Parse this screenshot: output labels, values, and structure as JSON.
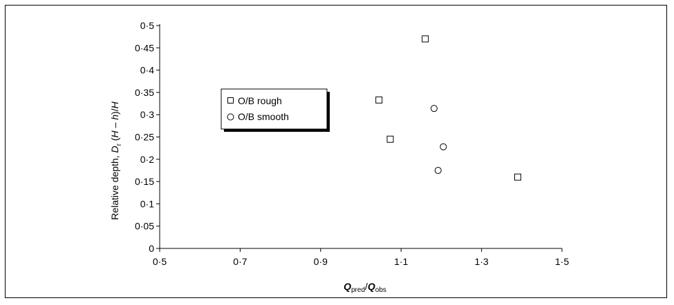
{
  "chart_data": {
    "type": "scatter",
    "xlabel": {
      "main": "Q",
      "main_sub": "pred",
      "sep": "/",
      "denom": "Q",
      "denom_sub": "obs"
    },
    "ylabel": {
      "prefix": "Relative depth, ",
      "var": "D",
      "var_sub": "r",
      "formula_open": " (",
      "formula_H1": "H",
      "formula_minus": " – ",
      "formula_h": "h",
      "formula_close": ")/",
      "formula_H2": "H"
    },
    "xlim": [
      0.5,
      1.5
    ],
    "ylim": [
      0,
      0.5
    ],
    "x_ticks": [
      0.5,
      0.7,
      0.9,
      1.1,
      1.3,
      1.5
    ],
    "x_tick_labels": [
      "0·5",
      "0·7",
      "0·9",
      "1·1",
      "1·3",
      "1·5"
    ],
    "y_ticks": [
      0,
      0.05,
      0.1,
      0.15,
      0.2,
      0.25,
      0.3,
      0.35,
      0.4,
      0.45,
      0.5
    ],
    "y_tick_labels": [
      "0",
      "0·05",
      "0·1",
      "0·15",
      "0·2",
      "0·25",
      "0·3",
      "0·35",
      "0·4",
      "0·45",
      "0·5"
    ],
    "grid": false,
    "legend_placement": "upper-left inside plot",
    "series": [
      {
        "name": "O/B rough",
        "marker": "square",
        "points": [
          {
            "x": 1.16,
            "y": 0.47
          },
          {
            "x": 1.045,
            "y": 0.333
          },
          {
            "x": 1.073,
            "y": 0.245
          },
          {
            "x": 1.39,
            "y": 0.16
          }
        ]
      },
      {
        "name": "O/B smooth",
        "marker": "circle",
        "points": [
          {
            "x": 1.182,
            "y": 0.314
          },
          {
            "x": 1.205,
            "y": 0.228
          },
          {
            "x": 1.192,
            "y": 0.175
          }
        ]
      }
    ]
  }
}
